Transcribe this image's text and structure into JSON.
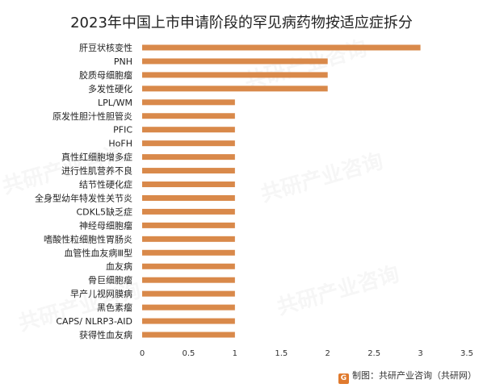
{
  "chart_data": {
    "type": "bar",
    "orientation": "horizontal",
    "title": "2023年中国上市申请阶段的罕见病药物按适应症拆分",
    "categories": [
      "肝豆状核变性",
      "PNH",
      "胶质母细胞瘤",
      "多发性硬化",
      "LPL/WM",
      "原发性胆汁性胆管炎",
      "PFIC",
      "HoFH",
      "真性红细胞增多症",
      "进行性肌营养不良",
      "结节性硬化症",
      "全身型幼年特发性关节炎",
      "CDKL5缺乏症",
      "神经母细胞瘤",
      "嗜酸性粒细胞性胃肠炎",
      "血管性血友病Ⅲ型",
      "血友病",
      "骨巨细胞瘤",
      "早产儿视网膜病",
      "黑色素瘤",
      "CAPS/ NLRP3-AID",
      "获得性血友病"
    ],
    "values": [
      3,
      2,
      2,
      2,
      1,
      1,
      1,
      1,
      1,
      1,
      1,
      1,
      1,
      1,
      1,
      1,
      1,
      1,
      1,
      1,
      1,
      1
    ],
    "xlim": [
      0,
      3.5
    ],
    "xticks": [
      "0",
      "0.5",
      "1",
      "1.5",
      "2",
      "2.5",
      "3",
      "3.5"
    ],
    "bar_color": "#d9894a",
    "grid": false,
    "legend": "none"
  },
  "source_note": "制图：共研产业咨询（共研网）",
  "source_icon": "G",
  "watermark": "共研产业咨询"
}
